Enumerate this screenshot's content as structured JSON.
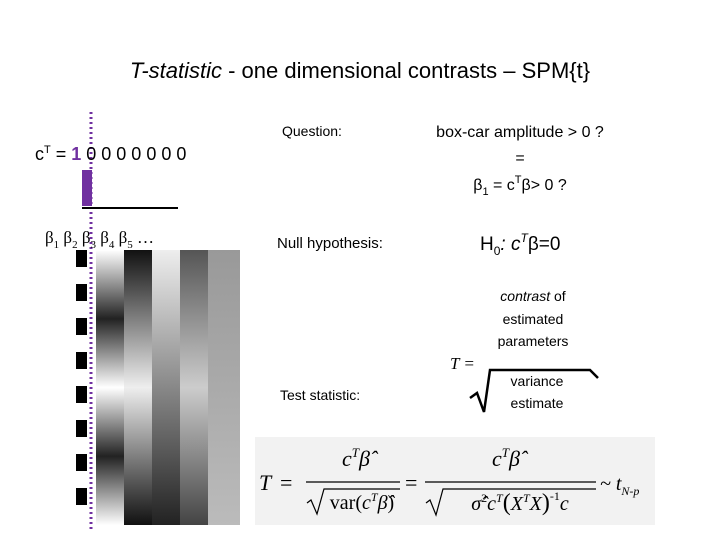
{
  "title": {
    "emphasis": "T-statistic",
    "rest": " - one dimensional contrasts – SPM{t}"
  },
  "contrast": {
    "symbol": "c",
    "sup": "T",
    "equals": " = ",
    "first": "1",
    "rest": " 0 0 0 0 0 0 0"
  },
  "betas": [
    "β",
    "1",
    " β",
    "2",
    " β",
    "3",
    " β",
    "4",
    " β",
    "5",
    " …"
  ],
  "question": {
    "label": "Question:",
    "line1": "box-car amplitude > 0 ?",
    "line2": "=",
    "line3": [
      "β",
      "1",
      " = c",
      "T",
      "β> 0 ?"
    ]
  },
  "null_hypothesis": {
    "label": "Null hypothesis:",
    "statement": [
      "H",
      "0",
      ": c",
      "T",
      "β=0"
    ]
  },
  "test_statistic": {
    "label": "Test statistic:",
    "lhs": "T =",
    "numerator": [
      "contrast",
      " of",
      "estimated",
      "parameters"
    ],
    "denominator": [
      "variance",
      "estimate"
    ]
  },
  "formula": {
    "lhs": "T",
    "eq1": "=",
    "num1": [
      "c",
      "T",
      "β̂"
    ],
    "den1": [
      "var(",
      "c",
      "T",
      "β̂",
      ")"
    ],
    "eq2": "=",
    "num2": [
      "c",
      "T",
      "β̂"
    ],
    "den2": [
      "σ̂",
      "2",
      "c",
      "T",
      "(",
      "X",
      "T",
      "X",
      ")",
      "-1",
      "c"
    ],
    "dist": [
      "~ t",
      "N-p"
    ]
  }
}
